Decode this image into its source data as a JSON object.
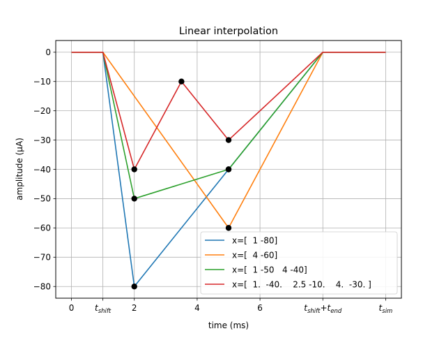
{
  "chart_data": {
    "type": "line",
    "title": "Linear interpolation",
    "xlabel": "time (ms)",
    "ylabel": "amplitude (μA)",
    "xlim": [
      -0.5,
      10.5
    ],
    "ylim": [
      -84,
      4
    ],
    "grid": true,
    "legend_position": "lower-right",
    "x_ticks": [
      {
        "value": 0,
        "label": "0"
      },
      {
        "value": 1,
        "label": "t",
        "sub": "shift"
      },
      {
        "value": 2,
        "label": "2"
      },
      {
        "value": 4,
        "label": "4"
      },
      {
        "value": 6,
        "label": "6"
      },
      {
        "value": 8,
        "label": "t",
        "sub": "shift",
        "label2": "+t",
        "sub2": "end"
      },
      {
        "value": 10,
        "label": "t",
        "sub": "sim"
      }
    ],
    "y_ticks": [
      {
        "value": 0,
        "label": "0"
      },
      {
        "value": -10,
        "label": "−10"
      },
      {
        "value": -20,
        "label": "−20"
      },
      {
        "value": -30,
        "label": "−30"
      },
      {
        "value": -40,
        "label": "−40"
      },
      {
        "value": -50,
        "label": "−50"
      },
      {
        "value": -60,
        "label": "−60"
      },
      {
        "value": -70,
        "label": "−70"
      },
      {
        "value": -80,
        "label": "−80"
      }
    ],
    "series": [
      {
        "name": "x=[  1 -80]",
        "color": "#1f77b4",
        "x": [
          0,
          1,
          2,
          5,
          8,
          10
        ],
        "y": [
          0,
          0,
          -80,
          -40,
          0,
          0
        ],
        "markers": [
          [
            2,
            -80
          ],
          [
            5,
            -40
          ]
        ]
      },
      {
        "name": "x=[  4 -60]",
        "color": "#ff7f0e",
        "x": [
          0,
          1,
          5,
          8,
          10
        ],
        "y": [
          0,
          0,
          -60,
          0,
          0
        ],
        "markers": [
          [
            5,
            -60
          ]
        ]
      },
      {
        "name": "x=[  1 -50   4 -40]",
        "color": "#2ca02c",
        "x": [
          0,
          1,
          2,
          5,
          8,
          10
        ],
        "y": [
          0,
          0,
          -50,
          -40,
          0,
          0
        ],
        "markers": [
          [
            2,
            -50
          ],
          [
            5,
            -40
          ]
        ]
      },
      {
        "name": "x=[  1.  -40.    2.5 -10.    4.  -30. ]",
        "color": "#d62728",
        "x": [
          0,
          1,
          2,
          3.5,
          5,
          8,
          10
        ],
        "y": [
          0,
          0,
          -40,
          -10,
          -30,
          0,
          0
        ],
        "markers": [
          [
            2,
            -40
          ],
          [
            3.5,
            -10
          ],
          [
            5,
            -30
          ]
        ]
      }
    ]
  }
}
